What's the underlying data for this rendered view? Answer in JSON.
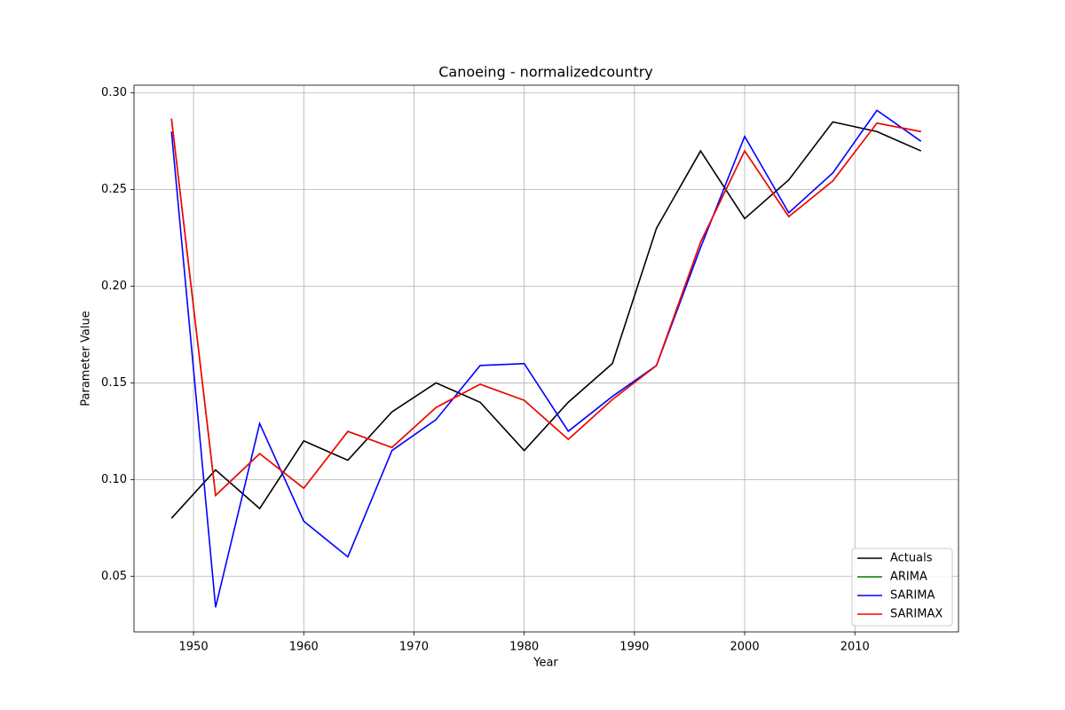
{
  "chart_data": {
    "type": "line",
    "title": "Canoeing - normalizedcountry",
    "xlabel": "Year",
    "ylabel": "Parameter Value",
    "x": [
      1948,
      1952,
      1956,
      1960,
      1964,
      1968,
      1972,
      1976,
      1980,
      1984,
      1988,
      1992,
      1996,
      2000,
      2004,
      2008,
      2012,
      2016
    ],
    "series": [
      {
        "name": "Actuals",
        "color": "#000000",
        "values": [
          0.08,
          0.105,
          0.085,
          0.12,
          0.11,
          0.135,
          0.15,
          0.14,
          0.115,
          0.14,
          0.16,
          0.23,
          0.27,
          0.235,
          0.255,
          0.285,
          0.28,
          0.27
        ]
      },
      {
        "name": "ARIMA",
        "color": "#008000",
        "values": [
          0.2867,
          0.0918,
          0.1134,
          0.0955,
          0.1249,
          0.1166,
          0.1373,
          0.1493,
          0.141,
          0.1208,
          0.1414,
          0.159,
          0.2228,
          0.27,
          0.236,
          0.2545,
          0.2844,
          0.28
        ]
      },
      {
        "name": "SARIMA",
        "color": "#0000ff",
        "values": [
          0.28,
          0.0339,
          0.129,
          0.0785,
          0.06,
          0.115,
          0.131,
          0.159,
          0.16,
          0.125,
          0.143,
          0.159,
          0.22,
          0.2775,
          0.238,
          0.2586,
          0.291,
          0.275
        ]
      },
      {
        "name": "SARIMAX",
        "color": "#ff0000",
        "values": [
          0.2867,
          0.0918,
          0.1134,
          0.0955,
          0.1249,
          0.1166,
          0.1373,
          0.1493,
          0.141,
          0.1208,
          0.1414,
          0.159,
          0.2228,
          0.27,
          0.236,
          0.2545,
          0.2844,
          0.28
        ]
      }
    ],
    "xlim": [
      1944.6,
      2019.4
    ],
    "xticks": [
      1950,
      1960,
      1970,
      1980,
      1990,
      2000,
      2010
    ],
    "ylim": [
      0.0212,
      0.304
    ],
    "yticks": [
      0.05,
      {
        "value": 0.1,
        "label": "0.10"
      },
      0.15,
      {
        "value": 0.2,
        "label": "0.20"
      },
      0.25,
      {
        "value": 0.3,
        "label": "0.30"
      }
    ],
    "grid": true,
    "legend": "lower right"
  }
}
